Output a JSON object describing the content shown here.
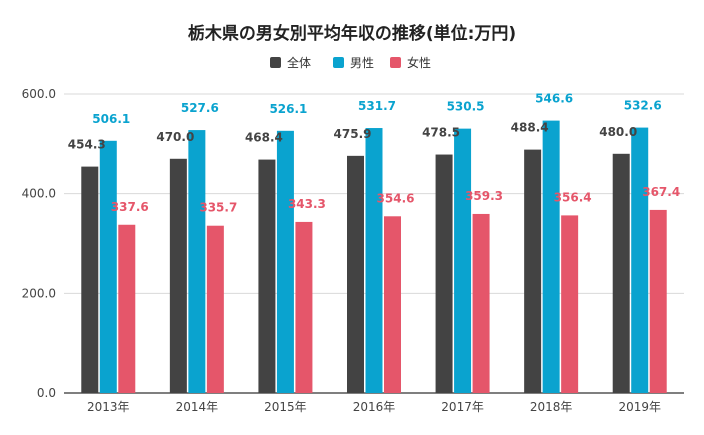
{
  "chart_data": {
    "type": "bar",
    "title": "栃木県の男女別平均年収の推移(単位:万円)",
    "categories": [
      "2013年",
      "2014年",
      "2015年",
      "2016年",
      "2017年",
      "2018年",
      "2019年"
    ],
    "series": [
      {
        "name": "全体",
        "color": "#434343",
        "values": [
          454.3,
          470.0,
          468.4,
          475.9,
          478.5,
          488.4,
          480.0
        ]
      },
      {
        "name": "男性",
        "color": "#0aa3cf",
        "values": [
          506.1,
          527.6,
          526.1,
          531.7,
          530.5,
          546.6,
          532.6
        ]
      },
      {
        "name": "女性",
        "color": "#e5566a",
        "values": [
          337.6,
          335.7,
          343.3,
          354.6,
          359.3,
          356.4,
          367.4
        ]
      }
    ],
    "y_ticks": [
      "0.0",
      "200.0",
      "400.0",
      "600.0"
    ],
    "ylim": [
      0,
      600
    ],
    "grid": true,
    "legend_position": "top-center",
    "xlabel": "",
    "ylabel": ""
  }
}
